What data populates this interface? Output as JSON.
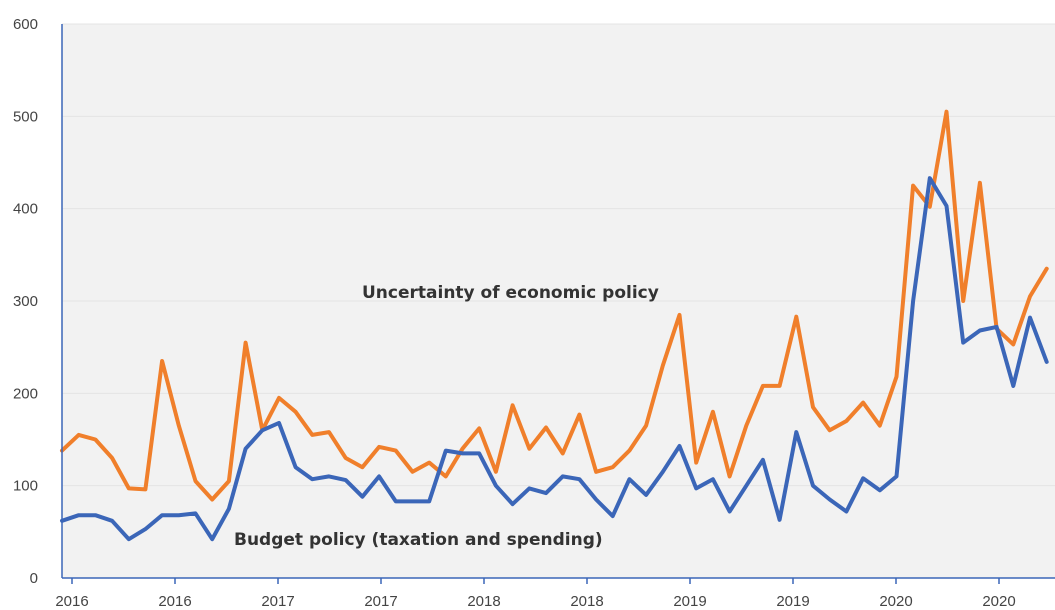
{
  "chart_data": {
    "type": "line",
    "x_tick_labels": [
      "2016",
      "2016",
      "2017",
      "2017",
      "2018",
      "2018",
      "2019",
      "2019",
      "2020",
      "2020"
    ],
    "y_ticks": [
      0,
      100,
      200,
      300,
      400,
      500,
      600
    ],
    "ylim": [
      0,
      600
    ],
    "grid": "horizontal",
    "series": [
      {
        "name": "Uncertainty of economic policy",
        "color": "#f07f2b",
        "values": [
          138,
          155,
          150,
          130,
          97,
          96,
          235,
          165,
          105,
          85,
          105,
          255,
          160,
          195,
          180,
          155,
          158,
          130,
          120,
          142,
          138,
          115,
          125,
          110,
          140,
          162,
          115,
          187,
          140,
          163,
          135,
          177,
          115,
          120,
          138,
          165,
          230,
          285,
          125,
          180,
          110,
          165,
          208,
          208,
          283,
          185,
          160,
          170,
          190,
          165,
          218,
          425,
          402,
          505,
          300,
          428,
          270,
          253,
          305,
          335
        ],
        "label": "Uncertainty of economic policy"
      },
      {
        "name": "Budget policy (taxation and spending)",
        "color": "#3b66b8",
        "values": [
          62,
          68,
          68,
          62,
          42,
          53,
          68,
          68,
          70,
          42,
          75,
          140,
          160,
          168,
          120,
          107,
          110,
          106,
          88,
          110,
          83,
          83,
          83,
          138,
          135,
          135,
          100,
          80,
          97,
          92,
          110,
          107,
          85,
          67,
          107,
          90,
          115,
          143,
          97,
          107,
          72,
          100,
          128,
          63,
          158,
          100,
          85,
          72,
          108,
          95,
          110,
          300,
          433,
          403,
          255,
          268,
          272,
          208,
          282,
          234
        ],
        "label": "Budget policy (taxation and spending)"
      }
    ]
  }
}
